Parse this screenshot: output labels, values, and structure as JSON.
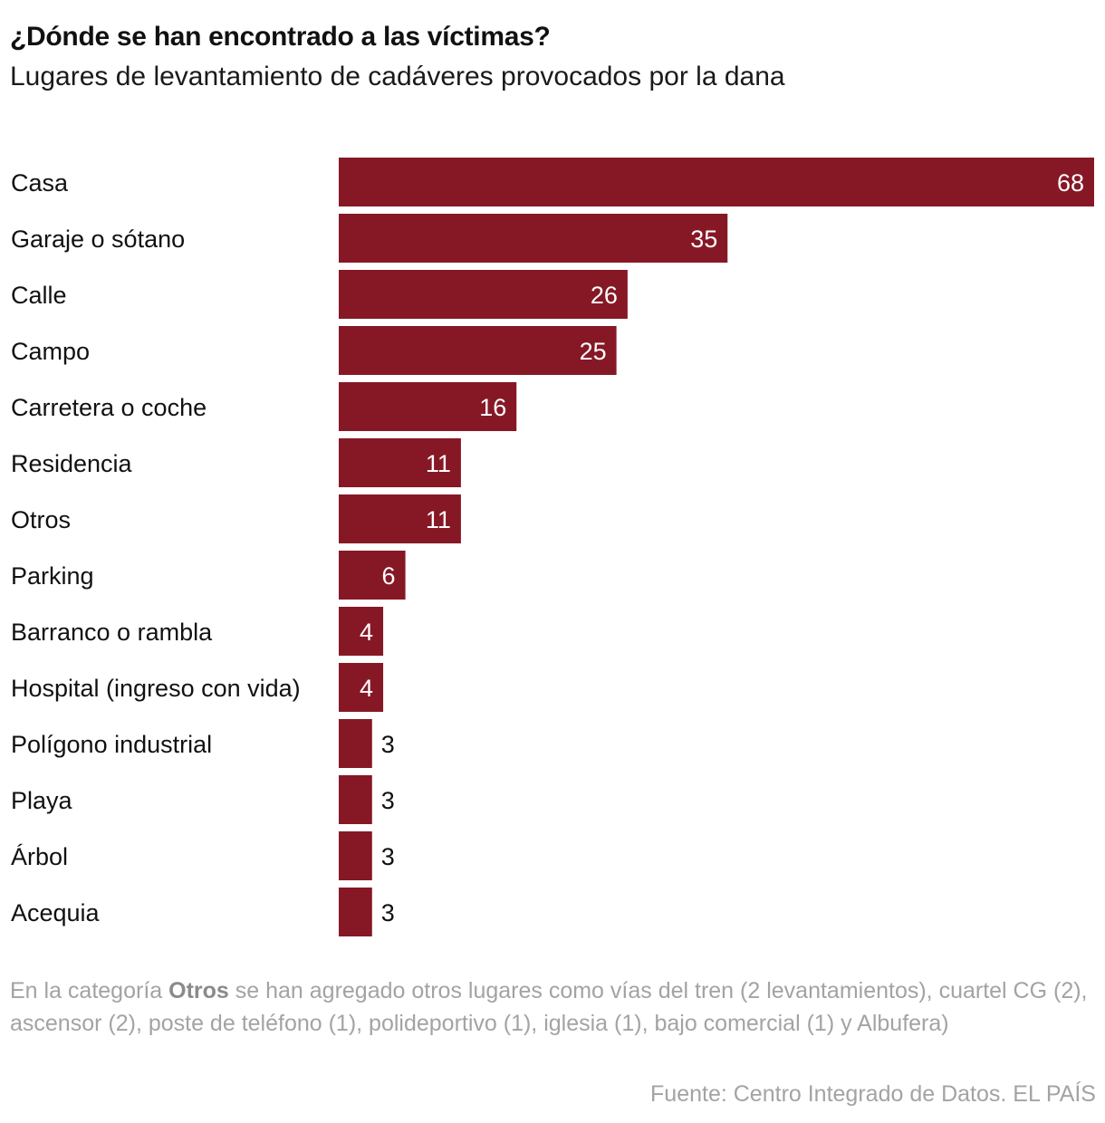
{
  "chart_data": {
    "type": "bar",
    "orientation": "horizontal",
    "title": "¿Dónde se han encontrado a las víctimas?",
    "subtitle": "Lugares de levantamiento de cadáveres provocados por la dana",
    "categories": [
      "Casa",
      "Garaje o sótano",
      "Calle",
      "Campo",
      "Carretera o coche",
      "Residencia",
      "Otros",
      "Parking",
      "Barranco o rambla",
      "Hospital (ingreso con vida)",
      "Polígono industrial",
      "Playa",
      "Árbol",
      "Acequia"
    ],
    "values": [
      68,
      35,
      26,
      25,
      16,
      11,
      11,
      6,
      4,
      4,
      3,
      3,
      3,
      3
    ],
    "xlim": [
      0,
      68
    ],
    "grid": false,
    "legend": "none",
    "bar_color": "#861826"
  },
  "note": {
    "prefix": "En la categoría ",
    "highlight": "Otros",
    "suffix": " se han agregado otros lugares como vías del tren (2 levantamientos), cuartel CG (2), ascensor (2), poste de teléfono (1), polideportivo (1), iglesia (1), bajo comercial (1) y Albufera)"
  },
  "source": "Fuente: Centro Integrado de Datos. EL PAÍS"
}
